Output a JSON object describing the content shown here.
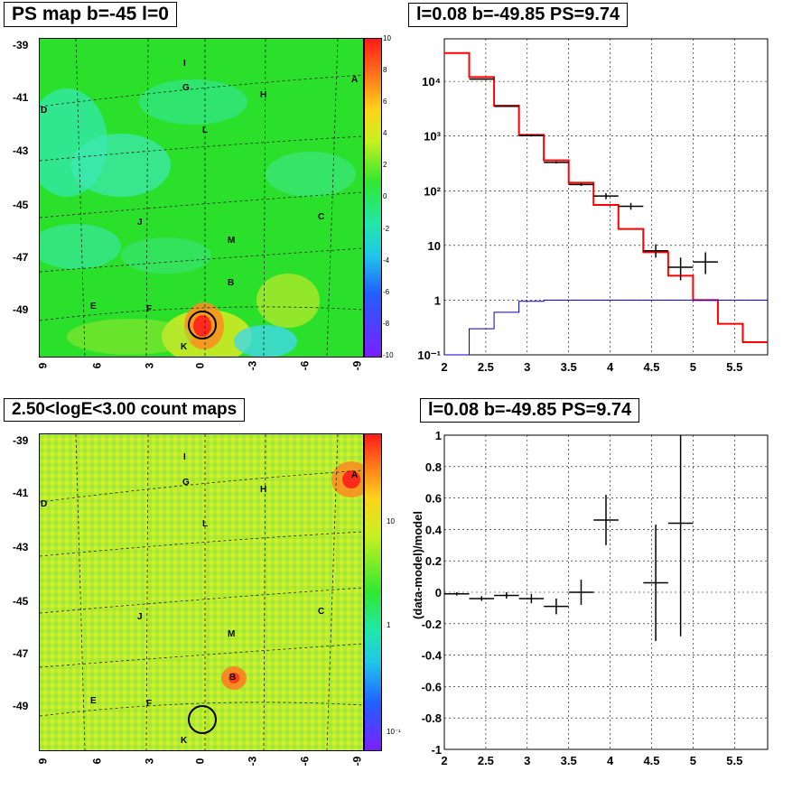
{
  "top_left": {
    "title": "PS map b=-45 l=0",
    "y_ticks": [
      "-39",
      "-41",
      "-43",
      "-45",
      "-47",
      "-49"
    ],
    "x_ticks": [
      "9",
      "6",
      "3",
      "0",
      "-3",
      "-6",
      "-9"
    ],
    "colorbar_ticks": [
      "10",
      "8",
      "6",
      "4",
      "2",
      "0",
      "-2",
      "-4",
      "-6",
      "-8",
      "-10"
    ],
    "source_labels": [
      "A",
      "B",
      "C",
      "D",
      "E",
      "F",
      "G",
      "H",
      "I",
      "J",
      "K",
      "L",
      "M"
    ]
  },
  "bottom_left": {
    "title": "2.50<logE<3.00 count maps",
    "y_ticks": [
      "-39",
      "-41",
      "-43",
      "-45",
      "-47",
      "-49"
    ],
    "x_ticks": [
      "9",
      "6",
      "3",
      "0",
      "-3",
      "-6",
      "-9"
    ],
    "colorbar_ticks": [
      "10",
      "1",
      "10⁻¹"
    ],
    "source_labels": [
      "A",
      "B",
      "C",
      "D",
      "E",
      "F",
      "G",
      "H",
      "I",
      "J",
      "K",
      "L",
      "M"
    ]
  },
  "top_right": {
    "title": "l=0.08 b=-49.85 PS=9.74"
  },
  "bottom_right": {
    "title": "l=0.08 b=-49.85 PS=9.74"
  },
  "chart_data": [
    {
      "type": "line",
      "title": "l=0.08 b=-49.85 PS=9.74",
      "log_y": true,
      "xlim": [
        2,
        5.9
      ],
      "ylim": [
        0.1,
        60000
      ],
      "x_ticks": [
        "2",
        "2.5",
        "3",
        "3.5",
        "4",
        "4.5",
        "5",
        "5.5"
      ],
      "y_ticks": [
        "10⁻¹",
        "1",
        "10",
        "10²",
        "10³",
        "10⁴"
      ],
      "grid": true,
      "bin_edges": [
        2.0,
        2.3,
        2.6,
        2.9,
        3.2,
        3.5,
        3.8,
        4.1,
        4.4,
        4.7,
        5.0,
        5.3,
        5.6,
        5.9
      ],
      "series": [
        {
          "color": "#ff0000",
          "style": "step",
          "values": [
            33000,
            12000,
            3600,
            1050,
            360,
            140,
            55,
            20,
            7.5,
            2.8,
            1.0,
            0.37,
            0.17
          ]
        },
        {
          "color": "#0000cc",
          "style": "step",
          "values": [
            0.1,
            0.3,
            0.6,
            0.95,
            1.0,
            1.0,
            1.0,
            1.0,
            1.0,
            1.0,
            1.0,
            1.0,
            1.0
          ]
        },
        {
          "color": "#000000",
          "style": "errorbar",
          "points": [
            {
              "x": 2.45,
              "y": 11000,
              "xerr": 0.15,
              "ylo": 10800,
              "yhi": 11200
            },
            {
              "x": 2.75,
              "y": 3500,
              "xerr": 0.15,
              "ylo": 3400,
              "yhi": 3600
            },
            {
              "x": 3.05,
              "y": 1020,
              "xerr": 0.15,
              "ylo": 980,
              "yhi": 1060
            },
            {
              "x": 3.35,
              "y": 330,
              "xerr": 0.15,
              "ylo": 315,
              "yhi": 345
            },
            {
              "x": 3.65,
              "y": 130,
              "xerr": 0.15,
              "ylo": 122,
              "yhi": 138
            },
            {
              "x": 3.95,
              "y": 80,
              "xerr": 0.15,
              "ylo": 70,
              "yhi": 90
            },
            {
              "x": 4.25,
              "y": 52,
              "xerr": 0.15,
              "ylo": 45,
              "yhi": 60
            },
            {
              "x": 4.55,
              "y": 8,
              "xerr": 0.15,
              "ylo": 6,
              "yhi": 10.5
            },
            {
              "x": 4.85,
              "y": 4,
              "xerr": 0.15,
              "ylo": 2.3,
              "yhi": 6
            },
            {
              "x": 5.15,
              "y": 5,
              "xerr": 0.15,
              "ylo": 3,
              "yhi": 7.5
            }
          ]
        }
      ]
    },
    {
      "type": "scatter",
      "title": "l=0.08 b=-49.85 PS=9.74",
      "ylabel": "(data-model)/model",
      "xlim": [
        2,
        5.9
      ],
      "ylim": [
        -1,
        1
      ],
      "x_ticks": [
        "2",
        "2.5",
        "3",
        "3.5",
        "4",
        "4.5",
        "5",
        "5.5"
      ],
      "y_ticks": [
        "1",
        "0.8",
        "0.6",
        "0.4",
        "0.2",
        "0",
        "-0.2",
        "-0.4",
        "-0.6",
        "-0.8",
        "-1"
      ],
      "grid": true,
      "series": [
        {
          "color": "#000000",
          "style": "errorbar",
          "points": [
            {
              "x": 2.15,
              "y": -0.01,
              "xerr": 0.15,
              "yerr": 0.01
            },
            {
              "x": 2.45,
              "y": -0.04,
              "xerr": 0.15,
              "yerr": 0.015
            },
            {
              "x": 2.75,
              "y": -0.02,
              "xerr": 0.15,
              "yerr": 0.02
            },
            {
              "x": 3.05,
              "y": -0.04,
              "xerr": 0.15,
              "yerr": 0.03
            },
            {
              "x": 3.35,
              "y": -0.09,
              "xerr": 0.15,
              "yerr": 0.05
            },
            {
              "x": 3.65,
              "y": 0.0,
              "xerr": 0.15,
              "yerr": 0.08
            },
            {
              "x": 3.95,
              "y": 0.46,
              "xerr": 0.15,
              "yerr": 0.16
            },
            {
              "x": 4.55,
              "y": 0.06,
              "xerr": 0.15,
              "yerr": 0.37
            },
            {
              "x": 4.85,
              "y": 0.44,
              "xerr": 0.15,
              "yerr": 0.72
            }
          ]
        }
      ]
    }
  ]
}
